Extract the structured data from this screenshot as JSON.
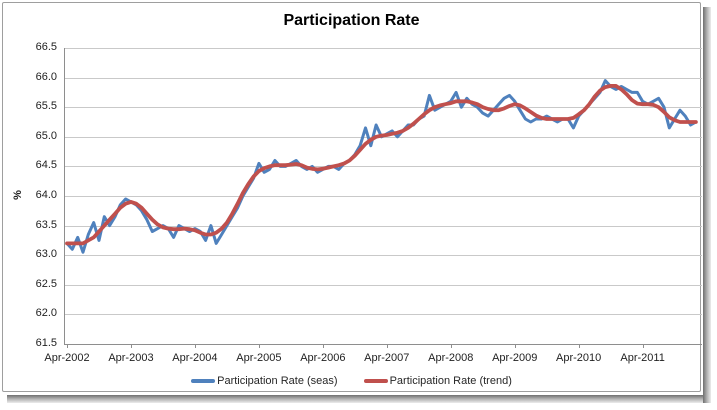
{
  "chart_data": {
    "type": "line",
    "title": "Participation Rate",
    "ylabel": "%",
    "xlabel": "",
    "ylim": [
      61.5,
      66.5
    ],
    "y_tick_step": 0.5,
    "y_tick_labels": [
      "66.5",
      "66.0",
      "65.5",
      "65.0",
      "64.5",
      "64.0",
      "63.5",
      "63.0",
      "62.5",
      "62.0",
      "61.5"
    ],
    "x_tick_labels": [
      "Apr-2002",
      "Apr-2003",
      "Apr-2004",
      "Apr-2005",
      "Apr-2006",
      "Apr-2007",
      "Apr-2008",
      "Apr-2009",
      "Apr-2010",
      "Apr-2011"
    ],
    "x_tick_interval_points": 12,
    "grid": "horizontal",
    "legend_position": "bottom",
    "series": [
      {
        "name": "Participation Rate (seas)",
        "color": "#4F81BD",
        "values": [
          63.2,
          63.1,
          63.3,
          63.05,
          63.35,
          63.55,
          63.25,
          63.65,
          63.5,
          63.65,
          63.85,
          63.95,
          63.9,
          63.85,
          63.75,
          63.6,
          63.4,
          63.45,
          63.5,
          63.45,
          63.3,
          63.5,
          63.45,
          63.4,
          63.45,
          63.4,
          63.25,
          63.5,
          63.2,
          63.35,
          63.5,
          63.65,
          63.8,
          64.0,
          64.15,
          64.3,
          64.55,
          64.4,
          64.45,
          64.6,
          64.5,
          64.5,
          64.55,
          64.6,
          64.5,
          64.45,
          64.5,
          64.4,
          64.45,
          64.5,
          64.5,
          64.45,
          64.55,
          64.6,
          64.7,
          64.85,
          65.15,
          64.85,
          65.2,
          65.0,
          65.05,
          65.1,
          65.0,
          65.1,
          65.2,
          65.2,
          65.3,
          65.35,
          65.7,
          65.45,
          65.5,
          65.55,
          65.6,
          65.75,
          65.5,
          65.65,
          65.55,
          65.5,
          65.4,
          65.35,
          65.45,
          65.55,
          65.65,
          65.7,
          65.6,
          65.45,
          65.3,
          65.25,
          65.3,
          65.3,
          65.35,
          65.3,
          65.25,
          65.3,
          65.3,
          65.15,
          65.35,
          65.45,
          65.55,
          65.65,
          65.75,
          65.95,
          65.85,
          65.8,
          65.85,
          65.8,
          65.75,
          65.75,
          65.6,
          65.55,
          65.6,
          65.65,
          65.5,
          65.15,
          65.3,
          65.45,
          65.35,
          65.2,
          65.25
        ]
      },
      {
        "name": "Participation Rate (trend)",
        "color": "#C0504D",
        "values": [
          63.2,
          63.2,
          63.2,
          63.2,
          63.25,
          63.3,
          63.4,
          63.5,
          63.6,
          63.7,
          63.8,
          63.87,
          63.9,
          63.87,
          63.8,
          63.7,
          63.6,
          63.52,
          63.47,
          63.45,
          63.44,
          63.44,
          63.45,
          63.44,
          63.42,
          63.38,
          63.35,
          63.35,
          63.38,
          63.45,
          63.55,
          63.7,
          63.87,
          64.05,
          64.2,
          64.33,
          64.42,
          64.47,
          64.5,
          64.52,
          64.52,
          64.52,
          64.53,
          64.54,
          64.52,
          64.48,
          64.46,
          64.45,
          64.46,
          64.48,
          64.5,
          64.52,
          64.55,
          64.6,
          64.68,
          64.78,
          64.88,
          64.95,
          65.0,
          65.02,
          65.03,
          65.05,
          65.07,
          65.1,
          65.15,
          65.22,
          65.3,
          65.38,
          65.45,
          65.5,
          65.53,
          65.55,
          65.57,
          65.6,
          65.6,
          65.6,
          65.58,
          65.55,
          65.5,
          65.47,
          65.45,
          65.45,
          65.48,
          65.52,
          65.55,
          65.53,
          65.48,
          65.42,
          65.36,
          65.32,
          65.3,
          65.3,
          65.3,
          65.3,
          65.3,
          65.32,
          65.38,
          65.45,
          65.55,
          65.68,
          65.78,
          65.84,
          65.86,
          65.86,
          65.8,
          65.72,
          65.62,
          65.56,
          65.55,
          65.55,
          65.54,
          65.5,
          65.42,
          65.33,
          65.28,
          65.25,
          65.25,
          65.25,
          65.25
        ]
      }
    ]
  },
  "colors": {
    "gridline": "#c9c9c9",
    "axis_line": "#8e8e8e",
    "text": "#1f1f1f"
  }
}
